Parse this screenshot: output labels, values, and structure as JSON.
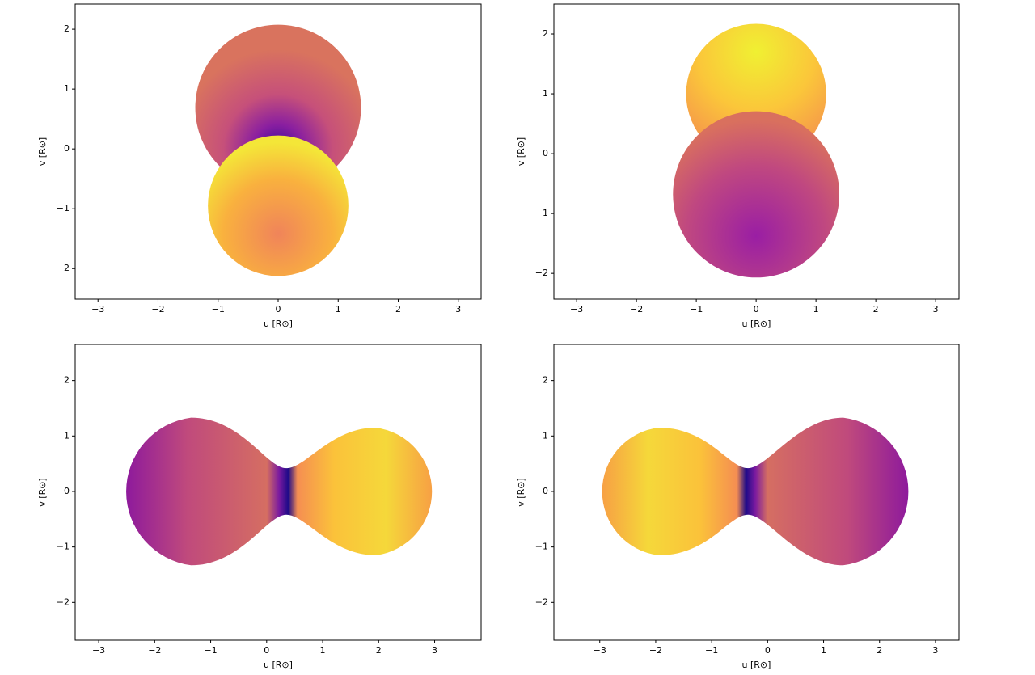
{
  "chart_data": [
    {
      "type": "mesh",
      "xlabel": "u [R⊙]",
      "ylabel": "v [R⊙]",
      "xlim": [
        -3.38,
        3.38
      ],
      "ylim": [
        -2.51,
        2.42
      ],
      "xticks": [
        {
          "value": -3,
          "label": "−3"
        },
        {
          "value": -2,
          "label": "−2"
        },
        {
          "value": -1,
          "label": "−1"
        },
        0,
        1,
        2,
        3
      ],
      "yticks": [
        {
          "value": -2,
          "label": "−2"
        },
        {
          "value": -1,
          "label": "−1"
        },
        0,
        1,
        2
      ]
    },
    {
      "type": "mesh",
      "xlabel": "u [R⊙]",
      "ylabel": "v [R⊙]",
      "xlim": [
        -3.38,
        3.39
      ],
      "ylim": [
        -2.43,
        2.5
      ],
      "xticks": [
        {
          "value": -3,
          "label": "−3"
        },
        {
          "value": -2,
          "label": "−2"
        },
        {
          "value": -1,
          "label": "−1"
        },
        0,
        1,
        2,
        3
      ],
      "yticks": [
        {
          "value": -2,
          "label": "−2"
        },
        {
          "value": -1,
          "label": "−1"
        },
        0,
        1,
        2
      ]
    },
    {
      "type": "mesh",
      "xlabel": "u [R⊙]",
      "ylabel": "v [R⊙]",
      "xlim": [
        -3.42,
        3.83
      ],
      "ylim": [
        -2.68,
        2.65
      ],
      "xticks": [
        {
          "value": -3,
          "label": "−3"
        },
        {
          "value": -2,
          "label": "−2"
        },
        {
          "value": -1,
          "label": "−1"
        },
        0,
        1,
        2,
        3
      ],
      "yticks": [
        {
          "value": -2,
          "label": "−2"
        },
        {
          "value": -1,
          "label": "−1"
        },
        0,
        1,
        2
      ]
    },
    {
      "type": "mesh",
      "xlabel": "u [R⊙]",
      "ylabel": "v [R⊙]",
      "xlim": [
        -3.82,
        3.42
      ],
      "ylim": [
        -2.68,
        2.65
      ],
      "xticks": [
        {
          "value": -3,
          "label": "−3"
        },
        {
          "value": -2,
          "label": "−2"
        },
        {
          "value": -1,
          "label": "−1"
        },
        0,
        1,
        2,
        3
      ],
      "yticks": [
        {
          "value": -2,
          "label": "−2"
        },
        {
          "value": -1,
          "label": "−1"
        },
        0,
        1,
        2
      ]
    }
  ]
}
